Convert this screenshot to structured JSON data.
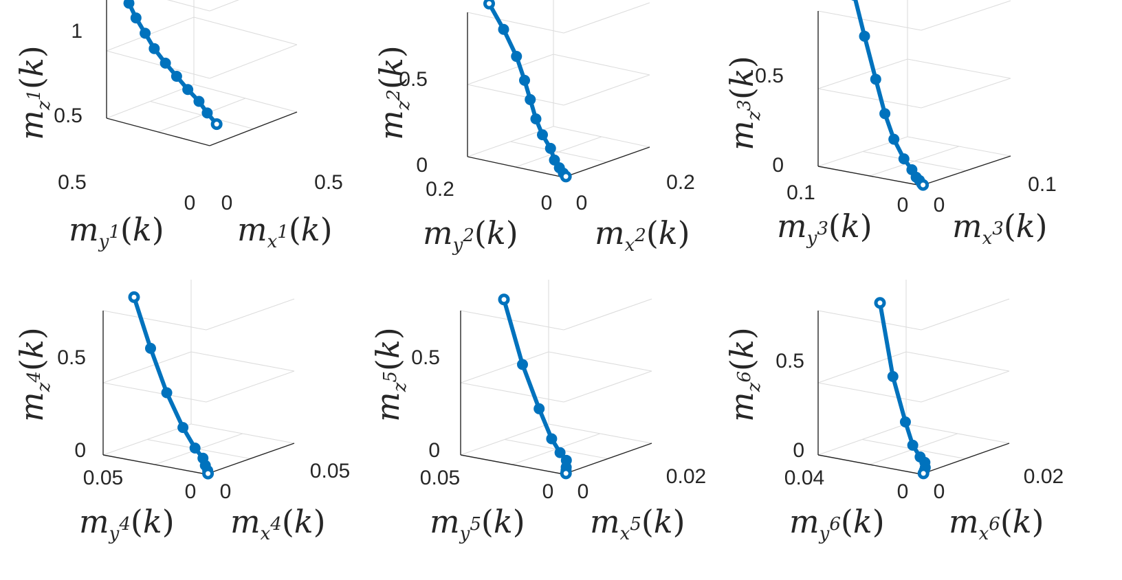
{
  "chart_data": [
    {
      "type": "line3d",
      "xlabel": "m_{x^1}(k)",
      "ylabel": "m_{y^1}(k)",
      "zlabel": "m_{z^1}(k)",
      "x_ticks": [
        "0",
        "0.5"
      ],
      "y_ticks": [
        "0",
        "0.5"
      ],
      "z_ticks": [
        "0.5",
        "1"
      ],
      "xlim": [
        0,
        0.5
      ],
      "ylim": [
        0,
        0.5
      ],
      "zlim": [
        0,
        1
      ],
      "x": [
        0.01,
        0.01,
        0.015,
        0.02,
        0.025,
        0.03,
        0.035,
        0.04,
        0.045,
        0.045,
        0.04
      ],
      "y": [
        0.44,
        0.4,
        0.37,
        0.33,
        0.29,
        0.24,
        0.19,
        0.14,
        0.09,
        0.05,
        0.0
      ],
      "z": [
        0.98,
        0.89,
        0.79,
        0.69,
        0.59,
        0.5,
        0.42,
        0.34,
        0.27,
        0.2,
        0.14
      ]
    },
    {
      "type": "line3d",
      "xlabel": "m_{x^2}(k)",
      "ylabel": "m_{y^2}(k)",
      "zlabel": "m_{z^2}(k)",
      "x_ticks": [
        "0",
        "0.2"
      ],
      "y_ticks": [
        "0",
        "0.2"
      ],
      "z_ticks": [
        "0",
        "0.5"
      ],
      "xlim": [
        0,
        0.2
      ],
      "ylim": [
        0,
        0.2
      ],
      "zlim": [
        0,
        0.7
      ],
      "x": [
        0.0,
        0.0,
        0.002,
        0.004,
        0.006,
        0.008,
        0.012,
        0.014,
        0.012,
        0.01,
        0.008,
        0.005
      ],
      "y": [
        0.155,
        0.125,
        0.1,
        0.085,
        0.075,
        0.065,
        0.055,
        0.04,
        0.03,
        0.018,
        0.008,
        0.0
      ],
      "z": [
        0.765,
        0.655,
        0.535,
        0.425,
        0.335,
        0.245,
        0.17,
        0.11,
        0.06,
        0.03,
        0.01,
        0.0
      ]
    },
    {
      "type": "line3d",
      "xlabel": "m_{x^3}(k)",
      "ylabel": "m_{y^3}(k)",
      "zlabel": "m_{z^3}(k)",
      "x_ticks": [
        "0",
        "0.1"
      ],
      "y_ticks": [
        "0",
        "0.1"
      ],
      "z_ticks": [
        "0",
        "0.5"
      ],
      "xlim": [
        0,
        0.1
      ],
      "ylim": [
        0,
        0.1
      ],
      "zlim": [
        0,
        0.75
      ],
      "x": [
        0.0,
        0.0,
        0.001,
        0.002,
        0.004,
        0.006,
        0.008,
        0.007,
        0.006,
        0.004,
        0.002
      ],
      "y": [
        0.065,
        0.055,
        0.045,
        0.037,
        0.03,
        0.022,
        0.016,
        0.011,
        0.007,
        0.003,
        0.0
      ],
      "z": [
        0.86,
        0.67,
        0.47,
        0.31,
        0.19,
        0.1,
        0.05,
        0.02,
        0.01,
        0.0,
        0.0
      ]
    },
    {
      "type": "line3d",
      "xlabel": "m_{x^4}(k)",
      "ylabel": "m_{y^4}(k)",
      "zlabel": "m_{z^4}(k)",
      "x_ticks": [
        "0",
        "0.05"
      ],
      "y_ticks": [
        "0",
        "0.05"
      ],
      "z_ticks": [
        "0",
        "0.5"
      ],
      "xlim": [
        0,
        0.05
      ],
      "ylim": [
        0,
        0.05
      ],
      "zlim": [
        0,
        0.75
      ],
      "x": [
        0.0,
        0.0,
        0.001,
        0.002,
        0.003,
        0.004,
        0.003,
        0.002,
        0.001
      ],
      "y": [
        0.035,
        0.027,
        0.02,
        0.013,
        0.008,
        0.005,
        0.003,
        0.001,
        0.0
      ],
      "z": [
        0.85,
        0.6,
        0.38,
        0.21,
        0.11,
        0.06,
        0.03,
        0.01,
        0.0
      ]
    },
    {
      "type": "line3d",
      "xlabel": "m_{x^5}(k)",
      "ylabel": "m_{y^5}(k)",
      "zlabel": "m_{z^5}(k)",
      "x_ticks": [
        "0",
        "0.02"
      ],
      "y_ticks": [
        "0",
        "0.05"
      ],
      "z_ticks": [
        "0",
        "0.5"
      ],
      "xlim": [
        0,
        0.02
      ],
      "ylim": [
        0,
        0.05
      ],
      "zlim": [
        0,
        0.75
      ],
      "x": [
        0.0,
        0.0,
        0.0005,
        0.001,
        0.0015,
        0.002,
        0.0015,
        0.001,
        0.0005
      ],
      "y": [
        0.029,
        0.02,
        0.013,
        0.008,
        0.005,
        0.003,
        0.002,
        0.001,
        0.0
      ],
      "z": [
        0.85,
        0.53,
        0.31,
        0.16,
        0.09,
        0.05,
        0.02,
        0.01,
        0.0
      ]
    },
    {
      "type": "line3d",
      "xlabel": "m_{x^6}(k)",
      "ylabel": "m_{y^6}(k)",
      "zlabel": "m_{z^6}(k)",
      "x_ticks": [
        "0",
        "0.02"
      ],
      "y_ticks": [
        "0",
        "0.04"
      ],
      "z_ticks": [
        "0",
        "0.5"
      ],
      "xlim": [
        0,
        0.02
      ],
      "ylim": [
        0,
        0.04
      ],
      "zlim": [
        0,
        0.75
      ],
      "x": [
        0.0,
        0.0,
        0.0005,
        0.001,
        0.0015,
        0.002,
        0.0015,
        0.001,
        0.0005
      ],
      "y": [
        0.016,
        0.011,
        0.007,
        0.005,
        0.003,
        0.002,
        0.001,
        0.0005,
        0.0
      ],
      "z": [
        0.85,
        0.48,
        0.25,
        0.13,
        0.07,
        0.04,
        0.02,
        0.01,
        0.0
      ]
    }
  ],
  "colors": {
    "series": "#0072BD",
    "axis": "#262626",
    "grid": "#dcdcdc"
  }
}
